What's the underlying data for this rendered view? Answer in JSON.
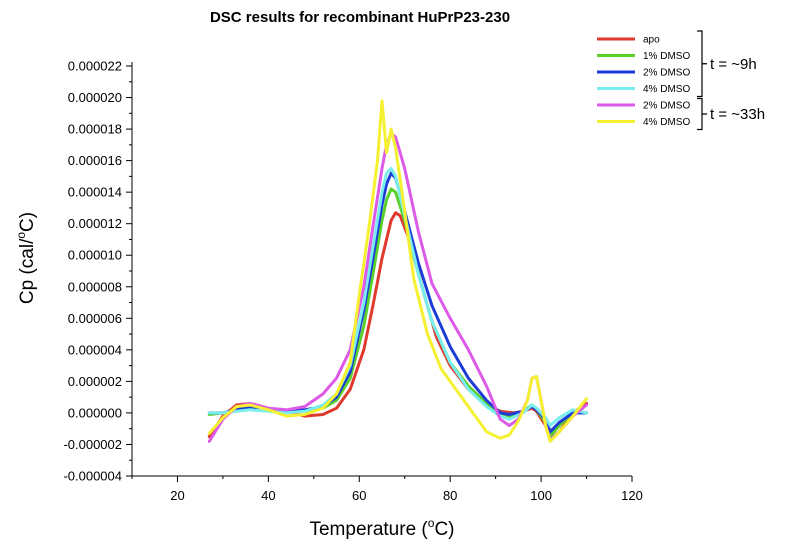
{
  "chart_data": {
    "type": "line",
    "title": "DSC results for recombinant HuPrP23-230",
    "xlabel_main": "Temperature (",
    "xlabel_sup": "o",
    "xlabel_end": "C)",
    "ylabel_main": "Cp (cal/",
    "ylabel_sup": "o",
    "ylabel_end": "C)",
    "xlim": [
      10,
      120
    ],
    "ylim": [
      -4e-06,
      2.2e-05
    ],
    "x_ticks": [
      20,
      40,
      60,
      80,
      100,
      120
    ],
    "x_tick_labels": [
      "20",
      "40",
      "60",
      "80",
      "100",
      "120"
    ],
    "y_ticks": [
      -4e-06,
      -2e-06,
      0,
      2e-06,
      4e-06,
      6e-06,
      8e-06,
      1e-05,
      1.2e-05,
      1.4e-05,
      1.6e-05,
      1.8e-05,
      2e-05,
      2.2e-05
    ],
    "y_tick_labels": [
      "-0.000004",
      "-0.000002",
      "0.000000",
      "0.000002",
      "0.000004",
      "0.000006",
      "0.000008",
      "0.000010",
      "0.000012",
      "0.000014",
      "0.000016",
      "0.000018",
      "0.000020",
      "0.000022"
    ],
    "grid": false,
    "legend_position": "top-right",
    "series": [
      {
        "name": "apo",
        "color": "#e03a2e",
        "points": [
          [
            27,
            -1.5e-06
          ],
          [
            30,
            -2e-07
          ],
          [
            33,
            5e-07
          ],
          [
            36,
            6e-07
          ],
          [
            40,
            3e-07
          ],
          [
            44,
            1e-07
          ],
          [
            48,
            -2e-07
          ],
          [
            52,
            -1e-07
          ],
          [
            55,
            3e-07
          ],
          [
            58,
            1.5e-06
          ],
          [
            61,
            4e-06
          ],
          [
            63,
            6.8e-06
          ],
          [
            65,
            9.8e-06
          ],
          [
            67,
            1.22e-05
          ],
          [
            68,
            1.27e-05
          ],
          [
            69,
            1.25e-05
          ],
          [
            71,
            1.1e-05
          ],
          [
            74,
            7.8e-06
          ],
          [
            77,
            4.8e-06
          ],
          [
            80,
            3e-06
          ],
          [
            84,
            1.5e-06
          ],
          [
            88,
            5e-07
          ],
          [
            91,
            1e-07
          ],
          [
            94,
            0
          ],
          [
            96,
            1e-07
          ],
          [
            98,
            3e-07
          ],
          [
            99,
            1e-07
          ],
          [
            101,
            -8e-07
          ],
          [
            102,
            -1.7e-06
          ],
          [
            104,
            -1.2e-06
          ],
          [
            107,
            0
          ],
          [
            110,
            6e-07
          ]
        ]
      },
      {
        "name": "1% DMSO",
        "color": "#5ad02a",
        "points": [
          [
            27,
            -1e-07
          ],
          [
            30,
            0
          ],
          [
            33,
            2e-07
          ],
          [
            36,
            3e-07
          ],
          [
            40,
            2e-07
          ],
          [
            44,
            1e-07
          ],
          [
            48,
            1e-07
          ],
          [
            52,
            3e-07
          ],
          [
            55,
            8e-07
          ],
          [
            58,
            2.2e-06
          ],
          [
            61,
            5.5e-06
          ],
          [
            63,
            8.8e-06
          ],
          [
            65,
            1.22e-05
          ],
          [
            66,
            1.35e-05
          ],
          [
            67,
            1.42e-05
          ],
          [
            68,
            1.4e-05
          ],
          [
            70,
            1.22e-05
          ],
          [
            73,
            8.8e-06
          ],
          [
            76,
            5.8e-06
          ],
          [
            80,
            3.2e-06
          ],
          [
            84,
            1.7e-06
          ],
          [
            88,
            6e-07
          ],
          [
            91,
            0
          ],
          [
            93,
            -2e-07
          ],
          [
            96,
            1e-07
          ],
          [
            98,
            5e-07
          ],
          [
            99,
            2e-07
          ],
          [
            101,
            -6e-07
          ],
          [
            102,
            -1.5e-06
          ],
          [
            104,
            -8e-07
          ],
          [
            107,
            0
          ],
          [
            110,
            0
          ]
        ]
      },
      {
        "name": "2% DMSO",
        "color": "#1c3cd8",
        "points": [
          [
            27,
            0
          ],
          [
            30,
            0
          ],
          [
            33,
            2e-07
          ],
          [
            36,
            4e-07
          ],
          [
            40,
            2e-07
          ],
          [
            44,
            1e-07
          ],
          [
            48,
            2e-07
          ],
          [
            52,
            4e-07
          ],
          [
            55,
            1e-06
          ],
          [
            58,
            2.6e-06
          ],
          [
            61,
            6.5e-06
          ],
          [
            63,
            9.8e-06
          ],
          [
            65,
            1.32e-05
          ],
          [
            66,
            1.45e-05
          ],
          [
            67,
            1.52e-05
          ],
          [
            68,
            1.49e-05
          ],
          [
            70,
            1.28e-05
          ],
          [
            73,
            9.5e-06
          ],
          [
            76,
            6.8e-06
          ],
          [
            80,
            4.2e-06
          ],
          [
            84,
            2.2e-06
          ],
          [
            88,
            8e-07
          ],
          [
            91,
            0
          ],
          [
            93,
            -1e-07
          ],
          [
            96,
            1e-07
          ],
          [
            98,
            4e-07
          ],
          [
            99,
            2e-07
          ],
          [
            101,
            -4e-07
          ],
          [
            102,
            -1.2e-06
          ],
          [
            104,
            -6e-07
          ],
          [
            107,
            0
          ],
          [
            110,
            0
          ]
        ]
      },
      {
        "name": "4% DMSO",
        "color": "#7aeeee",
        "points": [
          [
            27,
            0
          ],
          [
            30,
            0
          ],
          [
            33,
            1e-07
          ],
          [
            36,
            2e-07
          ],
          [
            40,
            1e-07
          ],
          [
            44,
            0
          ],
          [
            48,
            1e-07
          ],
          [
            52,
            5e-07
          ],
          [
            55,
            1.2e-06
          ],
          [
            58,
            3e-06
          ],
          [
            61,
            7e-06
          ],
          [
            63,
            1.05e-05
          ],
          [
            65,
            1.4e-05
          ],
          [
            66,
            1.52e-05
          ],
          [
            67,
            1.55e-05
          ],
          [
            68,
            1.5e-05
          ],
          [
            70,
            1.25e-05
          ],
          [
            73,
            8.8e-06
          ],
          [
            76,
            5.8e-06
          ],
          [
            80,
            3.2e-06
          ],
          [
            84,
            1.5e-06
          ],
          [
            88,
            4e-07
          ],
          [
            91,
            -2e-07
          ],
          [
            93,
            -4e-07
          ],
          [
            96,
            0
          ],
          [
            98,
            5e-07
          ],
          [
            99,
            3e-07
          ],
          [
            101,
            -3e-07
          ],
          [
            102,
            -8e-07
          ],
          [
            104,
            -3e-07
          ],
          [
            107,
            2e-07
          ],
          [
            110,
            0
          ]
        ]
      },
      {
        "name": "2% DMSO",
        "color": "#dd5ae8",
        "points": [
          [
            27,
            -1.8e-06
          ],
          [
            30,
            -4e-07
          ],
          [
            33,
            4e-07
          ],
          [
            36,
            6e-07
          ],
          [
            40,
            3e-07
          ],
          [
            44,
            2e-07
          ],
          [
            48,
            4e-07
          ],
          [
            52,
            1.2e-06
          ],
          [
            55,
            2.2e-06
          ],
          [
            58,
            4e-06
          ],
          [
            61,
            8e-06
          ],
          [
            63,
            1.18e-05
          ],
          [
            65,
            1.55e-05
          ],
          [
            66,
            1.7e-05
          ],
          [
            67,
            1.77e-05
          ],
          [
            68,
            1.75e-05
          ],
          [
            70,
            1.55e-05
          ],
          [
            73,
            1.15e-05
          ],
          [
            76,
            8.2e-06
          ],
          [
            80,
            6e-06
          ],
          [
            84,
            4e-06
          ],
          [
            88,
            1.7e-06
          ],
          [
            91,
            -4e-07
          ],
          [
            93,
            -8e-07
          ],
          [
            95,
            -4e-07
          ],
          [
            97,
            8e-07
          ],
          [
            98,
            2.2e-06
          ],
          [
            99,
            2.3e-06
          ],
          [
            100,
            8e-07
          ],
          [
            101,
            -8e-07
          ],
          [
            102,
            -1.7e-06
          ],
          [
            104,
            -1.2e-06
          ],
          [
            107,
            -2e-07
          ],
          [
            110,
            5e-07
          ]
        ]
      },
      {
        "name": "4% DMSO",
        "color": "#f5f030",
        "points": [
          [
            27,
            -1.3e-06
          ],
          [
            30,
            -3e-07
          ],
          [
            33,
            4e-07
          ],
          [
            36,
            5e-07
          ],
          [
            40,
            2e-07
          ],
          [
            44,
            -2e-07
          ],
          [
            48,
            -1e-07
          ],
          [
            52,
            3e-07
          ],
          [
            55,
            1.2e-06
          ],
          [
            58,
            3.2e-06
          ],
          [
            60,
            7.5e-06
          ],
          [
            62,
            1.15e-05
          ],
          [
            64,
            1.6e-05
          ],
          [
            65,
            1.98e-05
          ],
          [
            66,
            1.65e-05
          ],
          [
            67,
            1.8e-05
          ],
          [
            68,
            1.68e-05
          ],
          [
            70,
            1.28e-05
          ],
          [
            72,
            8.5e-06
          ],
          [
            75,
            5e-06
          ],
          [
            78,
            2.8e-06
          ],
          [
            82,
            1.2e-06
          ],
          [
            85,
            0
          ],
          [
            88,
            -1.2e-06
          ],
          [
            91,
            -1.6e-06
          ],
          [
            93,
            -1.4e-06
          ],
          [
            95,
            -5e-07
          ],
          [
            97,
            8e-07
          ],
          [
            98,
            2.2e-06
          ],
          [
            99,
            2.3e-06
          ],
          [
            100,
            8e-07
          ],
          [
            101,
            -8e-07
          ],
          [
            102,
            -1.8e-06
          ],
          [
            104,
            -1.2e-06
          ],
          [
            107,
            -2e-07
          ],
          [
            110,
            9e-07
          ]
        ]
      }
    ],
    "annotations": [
      {
        "text": "t = ~9h",
        "group_series": [
          0,
          1,
          2,
          3
        ]
      },
      {
        "text": "t = ~33h",
        "group_series": [
          4,
          5
        ]
      }
    ]
  }
}
